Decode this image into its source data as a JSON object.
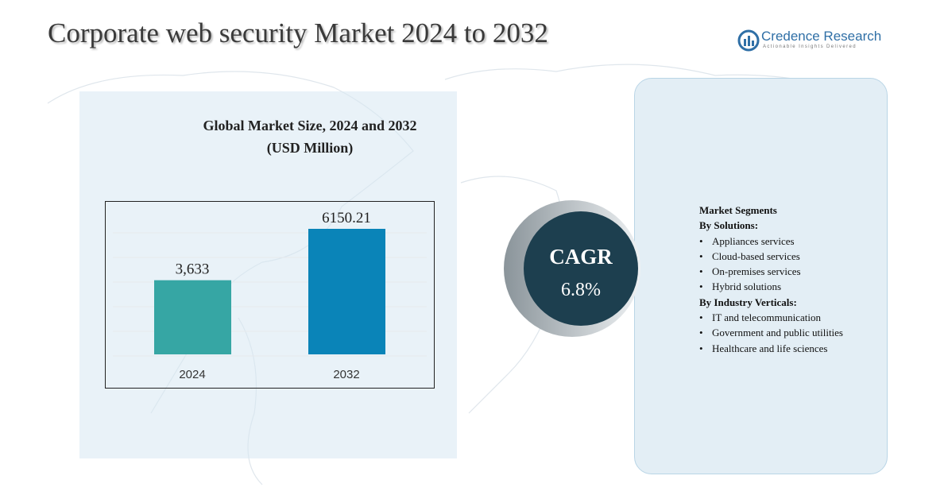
{
  "header": {
    "title": "Corporate web security Market 2024 to 2032",
    "brand": "Credence Research",
    "tagline": "Actionable Insights Delivered"
  },
  "chart_data": {
    "type": "bar",
    "title": "Global Market Size, 2024 and 2032",
    "subtitle": "(USD Million)",
    "categories": [
      "2024",
      "2032"
    ],
    "values": [
      3633,
      6150.21
    ],
    "value_labels": [
      "3,633",
      "6150.21"
    ],
    "colors": [
      "#36a6a4",
      "#0a84b8"
    ]
  },
  "cagr": {
    "label": "CAGR",
    "value": "6.8%"
  },
  "segments": {
    "heading": "Market Segments",
    "groups": [
      {
        "title": "By Solutions:",
        "items": [
          "Appliances services",
          "Cloud-based services",
          "On-premises services",
          "Hybrid solutions"
        ]
      },
      {
        "title": "By Industry Verticals:",
        "items": [
          "IT and telecommunication",
          "Government and public utilities",
          "Healthcare and life sciences"
        ]
      }
    ]
  }
}
